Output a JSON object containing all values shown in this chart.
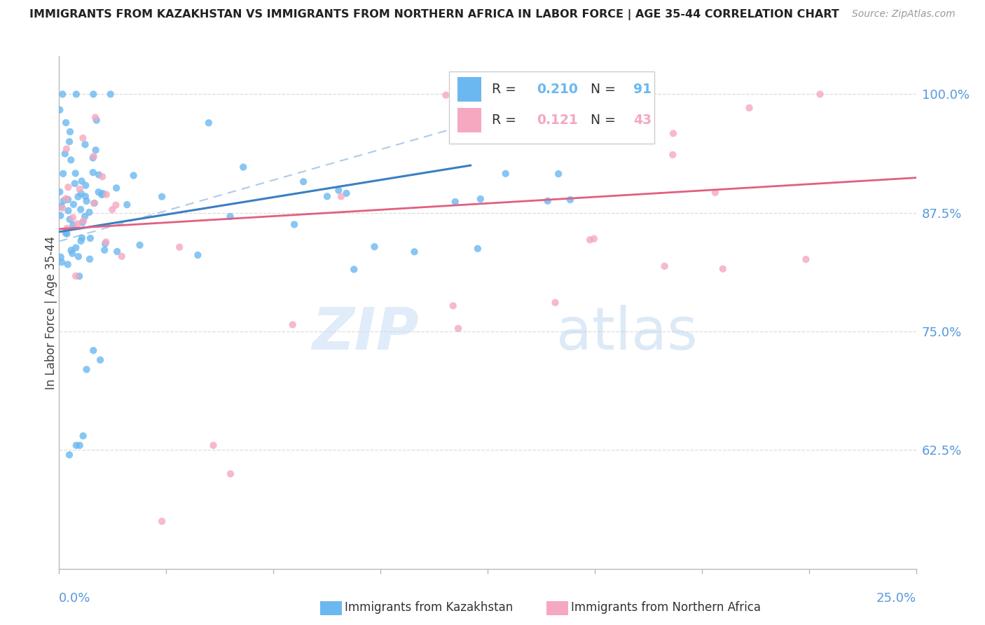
{
  "title": "IMMIGRANTS FROM KAZAKHSTAN VS IMMIGRANTS FROM NORTHERN AFRICA IN LABOR FORCE | AGE 35-44 CORRELATION CHART",
  "source": "Source: ZipAtlas.com",
  "ylabel": "In Labor Force | Age 35-44",
  "y_ticks": [
    0.625,
    0.75,
    0.875,
    1.0
  ],
  "y_tick_labels": [
    "62.5%",
    "75.0%",
    "87.5%",
    "100.0%"
  ],
  "xlim": [
    0.0,
    0.25
  ],
  "ylim": [
    0.5,
    1.04
  ],
  "legend_R1": "0.210",
  "legend_N1": "91",
  "legend_R2": "0.121",
  "legend_N2": "43",
  "blue_color": "#6bb8f0",
  "pink_color": "#f5a8c0",
  "blue_line_color": "#3a7fc1",
  "pink_line_color": "#e06080",
  "dashed_line_color": "#aaccee",
  "n_blue": 91,
  "n_pink": 43
}
